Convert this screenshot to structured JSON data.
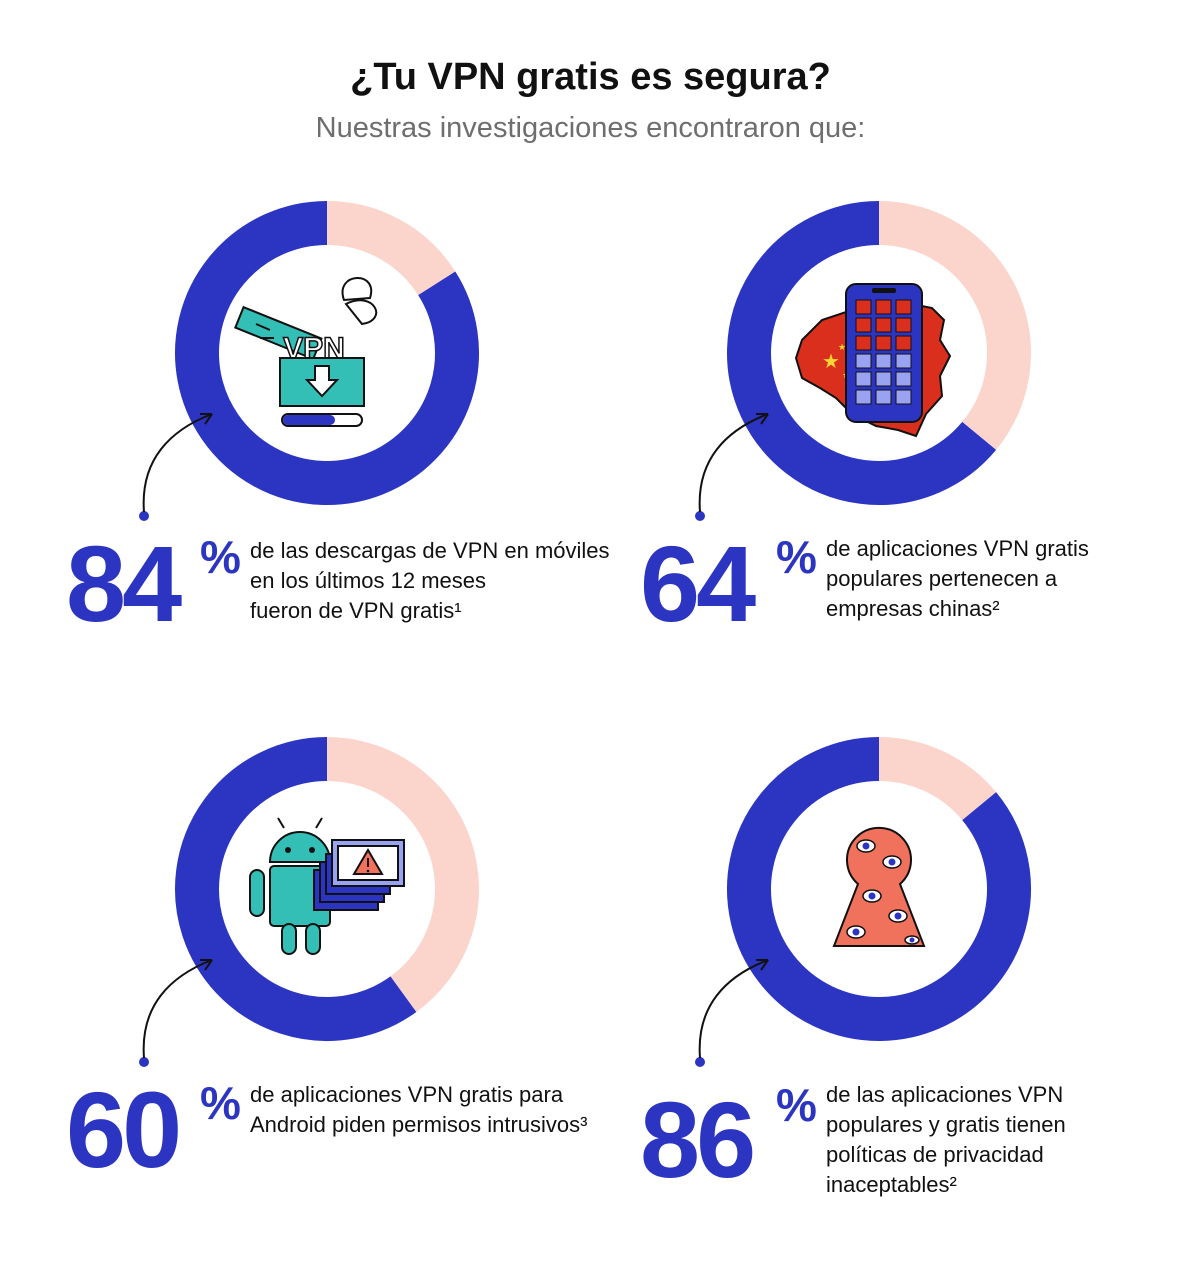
{
  "title": "¿Tu VPN gratis es segura?",
  "subtitle": "Nuestras investigaciones encontraron que:",
  "colors": {
    "accent": "#2c35c2",
    "remainder": "#fbd5cc",
    "text": "#111111",
    "subtitle": "#6e6e6e"
  },
  "chart_data": [
    {
      "type": "pie",
      "values": [
        84,
        16
      ],
      "number": "84",
      "suffix": "%",
      "icon": "vpn-gift-download-icon",
      "lines": [
        "de las descargas de VPN en móviles",
        "en los últimos 12 meses",
        "fueron de VPN gratis¹"
      ]
    },
    {
      "type": "pie",
      "values": [
        64,
        36
      ],
      "number": "64",
      "suffix": "%",
      "icon": "china-map-phone-icon",
      "lines": [
        "de aplicaciones VPN gratis",
        "populares pertenecen a",
        "empresas chinas²"
      ]
    },
    {
      "type": "pie",
      "values": [
        60,
        40
      ],
      "number": "60",
      "suffix": "%",
      "icon": "android-warning-windows-icon",
      "lines": [
        "de aplicaciones VPN gratis para",
        "Android piden permisos intrusivos³"
      ]
    },
    {
      "type": "pie",
      "values": [
        86,
        14
      ],
      "number": "86",
      "suffix": "%",
      "icon": "keyhole-eyes-icon",
      "lines": [
        "de las aplicaciones VPN",
        "populares y gratis tienen",
        "políticas de privacidad",
        "inaceptables²"
      ]
    }
  ]
}
